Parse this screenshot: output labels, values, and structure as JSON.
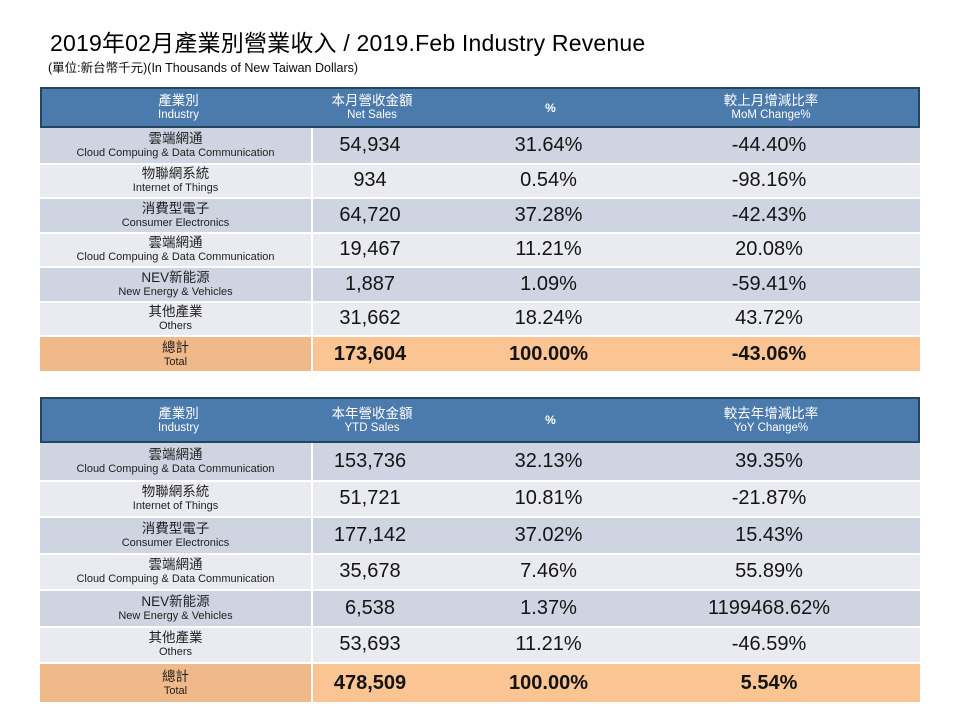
{
  "page": {
    "title": "2019年02月產業別營業收入 / 2019.Feb Industry Revenue",
    "subtitle": "(單位:新台幣千元)(In Thousands of New Taiwan Dollars)"
  },
  "colors": {
    "header_bg": "#4b7aac",
    "header_text": "#ffffff",
    "row_dark": "#ced4e2",
    "row_light": "#e9ebf1",
    "total_label_bg": "#efb98a",
    "total_data_bg": "#fbc493",
    "header_border": "#26455f"
  },
  "tables": [
    {
      "id": "monthly",
      "name": "monthly-revenue-table",
      "columns": [
        {
          "key": "industry",
          "zh": "產業別",
          "en": "Industry"
        },
        {
          "key": "sales",
          "zh": "本月營收金額",
          "en": "Net Sales"
        },
        {
          "key": "pct",
          "zh": "%",
          "en": ""
        },
        {
          "key": "change",
          "zh": "較上月增減比率",
          "en": "MoM Change%"
        }
      ],
      "rows": [
        {
          "zh": "雲端網通",
          "en": "Cloud Compuing & Data Communication",
          "sales": "54,934",
          "pct": "31.64%",
          "change": "-44.40%"
        },
        {
          "zh": "物聯網系統",
          "en": "Internet of Things",
          "sales": "934",
          "pct": "0.54%",
          "change": "-98.16%"
        },
        {
          "zh": "消費型電子",
          "en": "Consumer Electronics",
          "sales": "64,720",
          "pct": "37.28%",
          "change": "-42.43%"
        },
        {
          "zh": "雲端網通",
          "en": "Cloud Compuing & Data Communication",
          "sales": "19,467",
          "pct": "11.21%",
          "change": "20.08%"
        },
        {
          "zh": "NEV新能源",
          "en": "New Energy & Vehicles",
          "sales": "1,887",
          "pct": "1.09%",
          "change": "-59.41%"
        },
        {
          "zh": "其他產業",
          "en": "Others",
          "sales": "31,662",
          "pct": "18.24%",
          "change": "43.72%"
        }
      ],
      "total": {
        "zh": "總計",
        "en": "Total",
        "sales": "173,604",
        "pct": "100.00%",
        "change": "-43.06%"
      }
    },
    {
      "id": "ytd",
      "name": "ytd-revenue-table",
      "columns": [
        {
          "key": "industry",
          "zh": "產業別",
          "en": "Industry"
        },
        {
          "key": "sales",
          "zh": "本年營收金額",
          "en": "YTD Sales"
        },
        {
          "key": "pct",
          "zh": "%",
          "en": ""
        },
        {
          "key": "change",
          "zh": "較去年增減比率",
          "en": "YoY Change%"
        }
      ],
      "rows": [
        {
          "zh": "雲端網通",
          "en": "Cloud Compuing & Data Communication",
          "sales": "153,736",
          "pct": "32.13%",
          "change": "39.35%"
        },
        {
          "zh": "物聯網系統",
          "en": "Internet of Things",
          "sales": "51,721",
          "pct": "10.81%",
          "change": "-21.87%"
        },
        {
          "zh": "消費型電子",
          "en": "Consumer Electronics",
          "sales": "177,142",
          "pct": "37.02%",
          "change": "15.43%"
        },
        {
          "zh": "雲端網通",
          "en": "Cloud Compuing & Data Communication",
          "sales": "35,678",
          "pct": "7.46%",
          "change": "55.89%"
        },
        {
          "zh": "NEV新能源",
          "en": "New Energy & Vehicles",
          "sales": "6,538",
          "pct": "1.37%",
          "change": "1199468.62%"
        },
        {
          "zh": "其他產業",
          "en": "Others",
          "sales": "53,693",
          "pct": "11.21%",
          "change": "-46.59%"
        }
      ],
      "total": {
        "zh": "總計",
        "en": "Total",
        "sales": "478,509",
        "pct": "100.00%",
        "change": "5.54%"
      }
    }
  ]
}
